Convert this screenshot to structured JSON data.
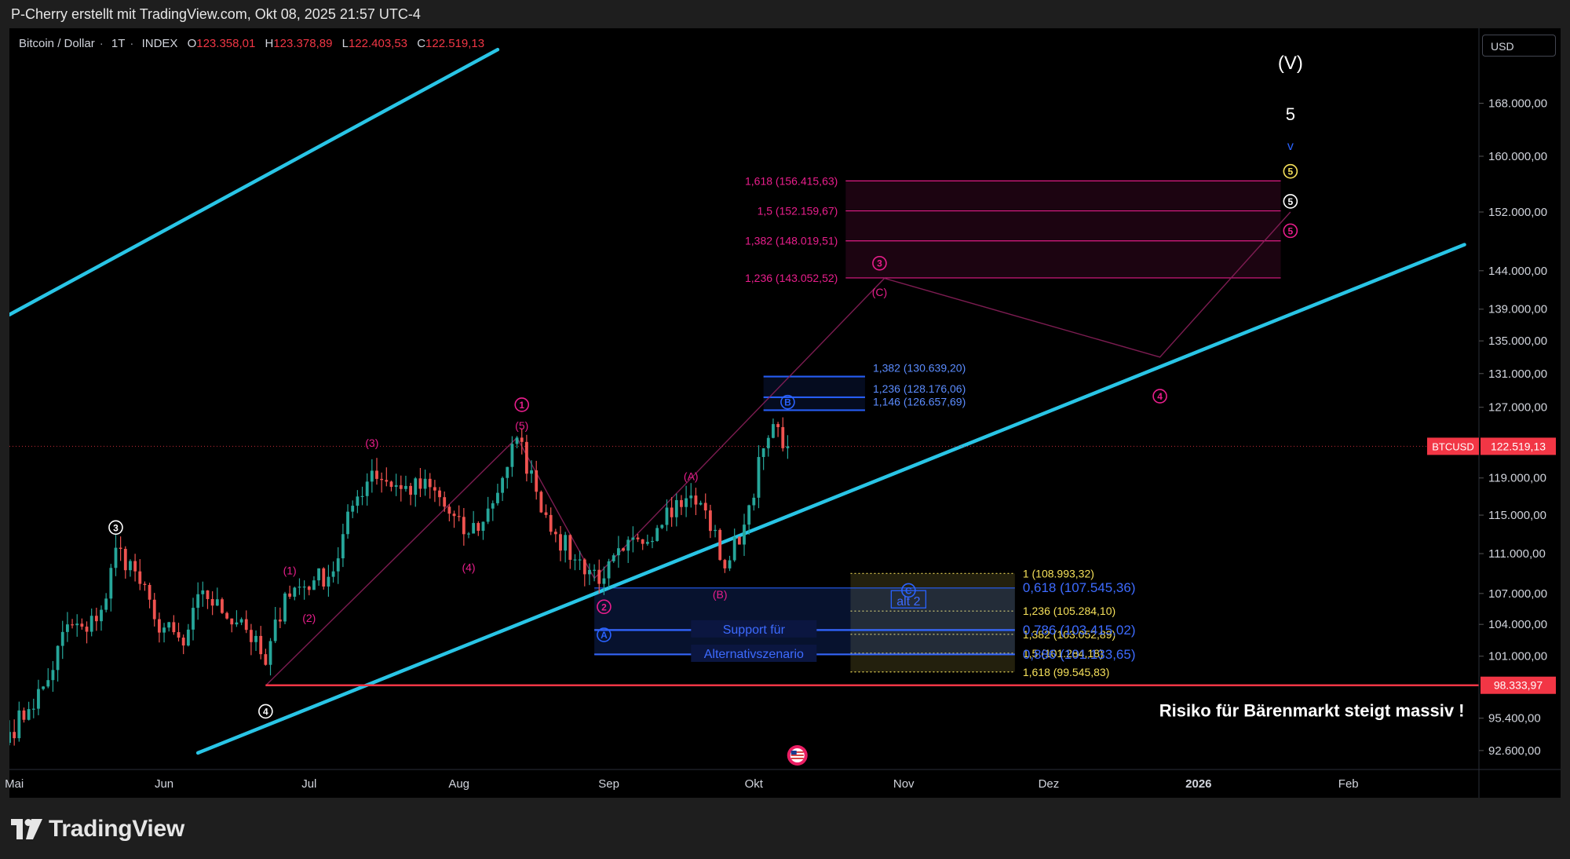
{
  "caption": "P-Cherry erstellt mit TradingView.com, Okt 08, 2025 21:57 UTC-4",
  "brand": "TradingView",
  "legend": {
    "symbol": "Bitcoin / Dollar",
    "interval": "1T",
    "source": "INDEX",
    "open_key": "O",
    "open": "123.358,01",
    "high_key": "H",
    "high": "123.378,89",
    "low_key": "L",
    "low": "122.403,53",
    "close_key": "C",
    "close": "122.519,13"
  },
  "currency": "USD",
  "colors": {
    "up": "#26a69a",
    "down": "#ef5350",
    "channel": "#29c5e6",
    "magenta": "#e91e8c",
    "blue": "#2962ff",
    "yellow": "#f5e05a",
    "red": "#f23645",
    "white": "#ffffff"
  },
  "chart_data": {
    "type": "candlestick",
    "symbol": "BTCUSD",
    "y_axis_labels": [
      {
        "label": "168.000,00",
        "value": 168000
      },
      {
        "label": "160.000,00",
        "value": 160000
      },
      {
        "label": "152.000,00",
        "value": 152000
      },
      {
        "label": "144.000,00",
        "value": 144000
      },
      {
        "label": "139.000,00",
        "value": 139000
      },
      {
        "label": "135.000,00",
        "value": 135000
      },
      {
        "label": "131.000,00",
        "value": 131000
      },
      {
        "label": "127.000,00",
        "value": 127000
      },
      {
        "label": "119.000,00",
        "value": 119000
      },
      {
        "label": "115.000,00",
        "value": 115000
      },
      {
        "label": "111.000,00",
        "value": 111000
      },
      {
        "label": "107.000,00",
        "value": 107000
      },
      {
        "label": "104.000,00",
        "value": 104000
      },
      {
        "label": "101.000,00",
        "value": 101000
      },
      {
        "label": "95.400,00",
        "value": 95400
      },
      {
        "label": "92.600,00",
        "value": 92600
      }
    ],
    "x_axis_labels": [
      {
        "label": "Mai",
        "date": "2025-05-01"
      },
      {
        "label": "Jun",
        "date": "2025-06-01"
      },
      {
        "label": "Jul",
        "date": "2025-07-01"
      },
      {
        "label": "Aug",
        "date": "2025-08-01"
      },
      {
        "label": "Sep",
        "date": "2025-09-01"
      },
      {
        "label": "Okt",
        "date": "2025-10-01"
      },
      {
        "label": "Nov",
        "date": "2025-11-01"
      },
      {
        "label": "Dez",
        "date": "2025-12-01"
      },
      {
        "label": "2026",
        "date": "2026-01-01",
        "bold": true
      },
      {
        "label": "Feb",
        "date": "2026-02-01"
      }
    ],
    "x_range": [
      "2025-04-30",
      "2026-02-28"
    ],
    "y_range": [
      91000,
      180000
    ],
    "scale": "log",
    "price_tag": {
      "label": "BTCUSD",
      "value": "122.519,13",
      "price": 122519.13
    },
    "risk_tag": {
      "value": "98.333,97",
      "price": 98333.97
    },
    "candle_anchors": [
      {
        "date": "2025-04-30",
        "price": 94200
      },
      {
        "date": "2025-05-04",
        "price": 96200
      },
      {
        "date": "2025-05-08",
        "price": 98800
      },
      {
        "date": "2025-05-12",
        "price": 104000
      },
      {
        "date": "2025-05-16",
        "price": 103300
      },
      {
        "date": "2025-05-20",
        "price": 106500
      },
      {
        "date": "2025-05-22",
        "price": 111600
      },
      {
        "date": "2025-05-26",
        "price": 109200
      },
      {
        "date": "2025-05-30",
        "price": 104500
      },
      {
        "date": "2025-06-05",
        "price": 102000
      },
      {
        "date": "2025-06-09",
        "price": 107300
      },
      {
        "date": "2025-06-13",
        "price": 105100
      },
      {
        "date": "2025-06-17",
        "price": 104500
      },
      {
        "date": "2025-06-22",
        "price": 100200
      },
      {
        "date": "2025-06-26",
        "price": 107000
      },
      {
        "date": "2025-07-02",
        "price": 108300
      },
      {
        "date": "2025-07-06",
        "price": 109200
      },
      {
        "date": "2025-07-10",
        "price": 116000
      },
      {
        "date": "2025-07-14",
        "price": 119800
      },
      {
        "date": "2025-07-20",
        "price": 117800
      },
      {
        "date": "2025-07-26",
        "price": 118000
      },
      {
        "date": "2025-08-02",
        "price": 113000
      },
      {
        "date": "2025-08-06",
        "price": 114300
      },
      {
        "date": "2025-08-10",
        "price": 119000
      },
      {
        "date": "2025-08-13",
        "price": 123500
      },
      {
        "date": "2025-08-17",
        "price": 117500
      },
      {
        "date": "2025-08-21",
        "price": 113000
      },
      {
        "date": "2025-08-25",
        "price": 110400
      },
      {
        "date": "2025-08-31",
        "price": 108500
      },
      {
        "date": "2025-09-04",
        "price": 111300
      },
      {
        "date": "2025-09-08",
        "price": 112000
      },
      {
        "date": "2025-09-13",
        "price": 115800
      },
      {
        "date": "2025-09-17",
        "price": 116800
      },
      {
        "date": "2025-09-21",
        "price": 115500
      },
      {
        "date": "2025-09-25",
        "price": 109500
      },
      {
        "date": "2025-09-29",
        "price": 114000
      },
      {
        "date": "2025-10-03",
        "price": 122300
      },
      {
        "date": "2025-10-06",
        "price": 124700
      },
      {
        "date": "2025-10-08",
        "price": 122519
      }
    ],
    "channel_lines": [
      {
        "p1": {
          "date": "2025-04-30",
          "price": 138300
        },
        "p2": {
          "date": "2025-08-09",
          "price": 176500
        }
      },
      {
        "p1": {
          "date": "2025-06-08",
          "price": 92400
        },
        "p2": {
          "date": "2026-02-25",
          "price": 147500
        }
      }
    ],
    "fib_zones": [
      {
        "name": "magenta-extension",
        "color": "magenta",
        "from": "2025-10-20",
        "to": "2026-01-18",
        "levels": [
          {
            "label": "1,618 (156.415,63)",
            "price": 156415.63
          },
          {
            "label": "1,5 (152.159,67)",
            "price": 152159.67
          },
          {
            "label": "1,382 (148.019,51)",
            "price": 148019.51
          },
          {
            "label": "1,236 (143.052,52)",
            "price": 143052.52
          }
        ]
      },
      {
        "name": "blue-extension",
        "color": "blue",
        "from": "2025-10-03",
        "to": "2025-10-24",
        "levels": [
          {
            "label": "1,382 (130.639,20)",
            "price": 130639.2
          },
          {
            "label": "1,236 (128.176,06)",
            "price": 128176.06
          },
          {
            "label": "1,146 (126.657,69)",
            "price": 126657.69
          }
        ]
      },
      {
        "name": "yellow-extension",
        "color": "yellow",
        "from": "2025-10-21",
        "to": "2025-11-24",
        "levels": [
          {
            "label": "1 (108.993,32)",
            "price": 108993.32
          },
          {
            "label": "1,236 (105.284,10)",
            "price": 105284.1
          },
          {
            "label": "1,382 (103.052,89)",
            "price": 103052.89
          },
          {
            "label": "1,5 (101.284,18)",
            "price": 101284.18
          },
          {
            "label": "1,618 (99.545,83)",
            "price": 99545.83
          }
        ]
      },
      {
        "name": "blue-retracement",
        "color": "blue",
        "from": "2025-08-29",
        "to": "2025-11-24",
        "levels": [
          {
            "label": "0,618 (107.545,36)",
            "price": 107545.36
          },
          {
            "label": "0,786 (103.415,02)",
            "price": 103415.02
          },
          {
            "label": "0,886 (101.133,65)",
            "price": 101133.65
          }
        ]
      }
    ],
    "elliott_labels": [
      {
        "text": "(V)",
        "date": "2026-01-20",
        "price": 174000,
        "color": "white",
        "size": 24
      },
      {
        "text": "5",
        "date": "2026-01-20",
        "price": 166000,
        "color": "white",
        "size": 22
      },
      {
        "text": "v",
        "date": "2026-01-20",
        "price": 161500,
        "color": "blue",
        "size": 16
      },
      {
        "text": "5",
        "date": "2026-01-20",
        "price": 157800,
        "color": "yellow",
        "circle": true
      },
      {
        "text": "5",
        "date": "2026-01-20",
        "price": 153500,
        "color": "white",
        "circle": true
      },
      {
        "text": "5",
        "date": "2026-01-20",
        "price": 149400,
        "color": "magenta",
        "circle": true
      },
      {
        "text": "3",
        "date": "2025-10-27",
        "price": 145000,
        "color": "magenta",
        "circle": true
      },
      {
        "text": "(C)",
        "date": "2025-10-27",
        "price": 141200,
        "color": "magenta"
      },
      {
        "text": "4",
        "date": "2025-12-24",
        "price": 128300,
        "color": "magenta",
        "circle": true
      },
      {
        "text": "B",
        "date": "2025-10-08",
        "price": 127600,
        "color": "blue",
        "circle": true
      },
      {
        "text": "1",
        "date": "2025-08-14",
        "price": 127300,
        "color": "magenta",
        "circle": true
      },
      {
        "text": "(5)",
        "date": "2025-08-14",
        "price": 124900,
        "color": "magenta"
      },
      {
        "text": "(3)",
        "date": "2025-07-14",
        "price": 122900,
        "color": "magenta"
      },
      {
        "text": "(A)",
        "date": "2025-09-18",
        "price": 119200,
        "color": "magenta"
      },
      {
        "text": "(4)",
        "date": "2025-08-03",
        "price": 109600,
        "color": "magenta"
      },
      {
        "text": "(1)",
        "date": "2025-06-27",
        "price": 109300,
        "color": "magenta"
      },
      {
        "text": "(2)",
        "date": "2025-07-01",
        "price": 104600,
        "color": "magenta"
      },
      {
        "text": "3",
        "date": "2025-05-22",
        "price": 113700,
        "color": "white",
        "circle": true
      },
      {
        "text": "4",
        "date": "2025-06-22",
        "price": 96000,
        "color": "white",
        "circle": true
      },
      {
        "text": "(B)",
        "date": "2025-09-24",
        "price": 106900,
        "color": "magenta"
      },
      {
        "text": "2",
        "date": "2025-08-31",
        "price": 105700,
        "color": "magenta",
        "circle": true
      },
      {
        "text": "A",
        "date": "2025-08-31",
        "price": 103000,
        "color": "blue",
        "circle": true
      },
      {
        "text": "C",
        "date": "2025-11-02",
        "price": 107300,
        "color": "blue",
        "circle": true
      }
    ],
    "annotations": [
      {
        "text": "Support für",
        "date": "2025-10-01",
        "price": 103500,
        "color": "blue"
      },
      {
        "text": "Alternativszenario",
        "date": "2025-10-01",
        "price": 101200,
        "color": "blue"
      },
      {
        "text": "alt 2",
        "date": "2025-11-02",
        "price": 106200,
        "color": "blue",
        "boxed": true
      },
      {
        "text": "Risiko für Bärenmarkt steigt massiv !",
        "date": "2026-02-25",
        "price": 95900,
        "color": "white",
        "bold": true
      }
    ]
  }
}
